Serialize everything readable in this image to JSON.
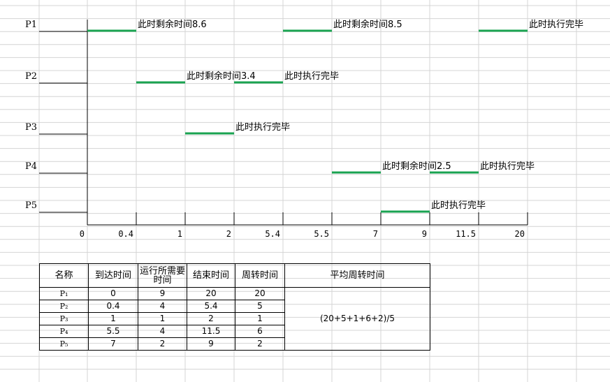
{
  "processes": [
    {
      "label": "P1"
    },
    {
      "label": "P2"
    },
    {
      "label": "P3"
    },
    {
      "label": "P4"
    },
    {
      "label": "P5"
    }
  ],
  "timeline_ticks": [
    "0",
    "0.4",
    "1",
    "2",
    "5.4",
    "5.5",
    "7",
    "9",
    "11.5",
    "20"
  ],
  "segments": [
    {
      "process": 0,
      "from": 0,
      "to": 1,
      "note": "此时剩余时间8.6"
    },
    {
      "process": 0,
      "from": 4,
      "to": 5,
      "note": "此时剩余时间8.5"
    },
    {
      "process": 0,
      "from": 8,
      "to": 9,
      "note": "此时执行完毕"
    },
    {
      "process": 1,
      "from": 1,
      "to": 2,
      "note": "此时剩余时间3.4"
    },
    {
      "process": 1,
      "from": 3,
      "to": 4,
      "note": "此时执行完毕"
    },
    {
      "process": 2,
      "from": 2,
      "to": 3,
      "note": "此时执行完毕"
    },
    {
      "process": 3,
      "from": 5,
      "to": 6,
      "note": "此时剩余时间2.5"
    },
    {
      "process": 3,
      "from": 7,
      "to": 8,
      "note": "此时执行完毕"
    },
    {
      "process": 4,
      "from": 6,
      "to": 7,
      "note": "此时执行完毕"
    }
  ],
  "colors": {
    "segment": "#1aa351",
    "grid": "#d4d4d4",
    "axis": "#000000"
  },
  "table": {
    "headers": [
      "名称",
      "到达时间",
      "运行所需要时间",
      "结束时间",
      "周转时间",
      "平均周转时间"
    ],
    "rows": [
      {
        "name": "P₁",
        "arrival": "0",
        "run": "9",
        "end": "20",
        "turnaround": "20"
      },
      {
        "name": "P₂",
        "arrival": "0.4",
        "run": "4",
        "end": "5.4",
        "turnaround": "5"
      },
      {
        "name": "P₃",
        "arrival": "1",
        "run": "1",
        "end": "2",
        "turnaround": "1"
      },
      {
        "name": "P₄",
        "arrival": "5.5",
        "run": "4",
        "end": "11.5",
        "turnaround": "6"
      },
      {
        "name": "P₅",
        "arrival": "7",
        "run": "2",
        "end": "9",
        "turnaround": "2"
      }
    ],
    "average_formula": "(20+5+1+6+2)/5"
  }
}
